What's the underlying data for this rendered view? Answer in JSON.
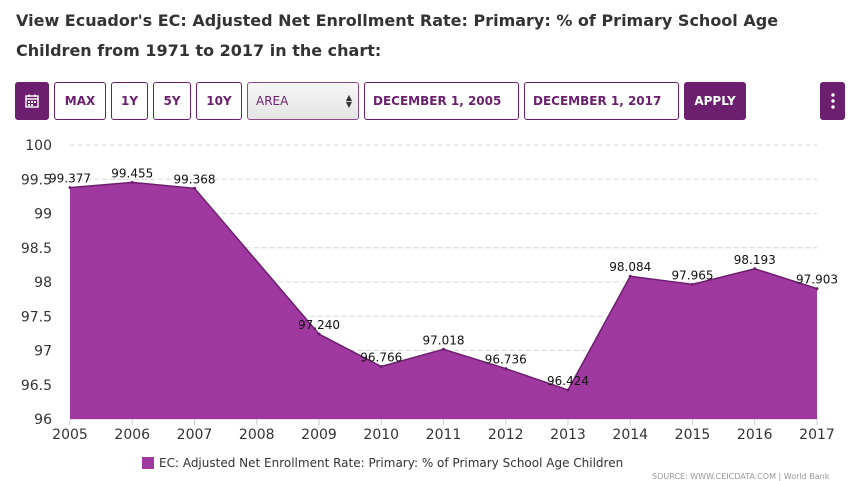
{
  "page": {
    "title": "View Ecuador's EC: Adjusted Net Enrollment Rate: Primary: % of Primary School Age Children from 1971 to 2017 in the chart:"
  },
  "toolbar": {
    "calendar_icon": "calendar-icon",
    "max_label": "MAX",
    "y1_label": "1Y",
    "y5_label": "5Y",
    "y10_label": "10Y",
    "chart_type_value": "AREA",
    "start_date": "DECEMBER 1, 2005",
    "end_date": "DECEMBER 1, 2017",
    "apply_label": "APPLY",
    "more_icon": "more-vertical-icon",
    "accent_color": "#6b1f6e"
  },
  "chart_data": {
    "type": "area",
    "title": "",
    "xlabel": "",
    "ylabel": "",
    "x": [
      2005,
      2006,
      2007,
      2009,
      2010,
      2011,
      2012,
      2013,
      2014,
      2015,
      2016,
      2017
    ],
    "values": [
      99.377,
      99.455,
      99.368,
      97.24,
      96.766,
      97.018,
      96.736,
      96.424,
      98.084,
      97.965,
      98.193,
      97.903
    ],
    "labels": [
      "99.377",
      "99.455",
      "99.368",
      "97.240",
      "96.766",
      "97.018",
      "96.736",
      "96.424",
      "98.084",
      "97.965",
      "98.193",
      "97.903"
    ],
    "x_ticks": [
      "2005",
      "2006",
      "2007",
      "2008",
      "2009",
      "2010",
      "2011",
      "2012",
      "2013",
      "2014",
      "2015",
      "2016",
      "2017"
    ],
    "y_ticks": [
      "96",
      "96.5",
      "97",
      "97.5",
      "98",
      "98.5",
      "99",
      "99.5",
      "100"
    ],
    "xlim": [
      2005,
      2017
    ],
    "ylim": [
      96,
      100
    ],
    "grid": true,
    "fill_color": "#a0399f",
    "line_color": "#6b1f6e"
  },
  "legend": {
    "label": "EC: Adjusted Net Enrollment Rate: Primary: % of Primary School Age Children",
    "color": "#a0399f"
  },
  "source": "SOURCE: WWW.CEICDATA.COM | World Bank"
}
